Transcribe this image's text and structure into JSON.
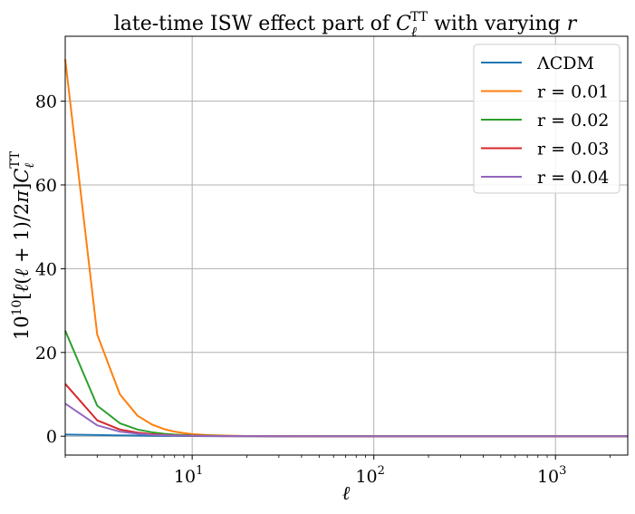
{
  "chart_data": {
    "type": "line",
    "title": "late-time ISW effect part of C_ℓ^TT with varying r",
    "xlabel": "ℓ",
    "ylabel": "10^10[ℓ(ℓ+1)/2π]C_ℓ^TT",
    "xscale": "log",
    "xlim": [
      2,
      2500
    ],
    "ylim": [
      -4.5,
      95.5
    ],
    "grid": true,
    "legend_position": "top-right",
    "x_ticks": [
      {
        "value": 10,
        "base": "10",
        "exp": "1"
      },
      {
        "value": 100,
        "base": "10",
        "exp": "2"
      },
      {
        "value": 1000,
        "base": "10",
        "exp": "3"
      }
    ],
    "y_ticks": [
      0,
      20,
      40,
      60,
      80
    ],
    "x": [
      2,
      3,
      4,
      5,
      6,
      7,
      8,
      9,
      10,
      12,
      15,
      20,
      30,
      50,
      100,
      200,
      500,
      1000,
      2500
    ],
    "series": [
      {
        "name": "ΛCDM",
        "color": "#1f77b4",
        "values": [
          0.4,
          0.3,
          0.2,
          0.15,
          0.1,
          0.08,
          0.06,
          0.05,
          0.04,
          0.03,
          0.02,
          0.01,
          0.0,
          0.0,
          0.0,
          0.0,
          0.0,
          0.0,
          0.0
        ]
      },
      {
        "name": "r = 0.01",
        "color": "#ff7f0e",
        "values": [
          90.0,
          24.3,
          10.0,
          4.9,
          2.8,
          1.7,
          1.1,
          0.75,
          0.5,
          0.3,
          0.15,
          0.05,
          0.02,
          0.0,
          0.0,
          0.0,
          0.0,
          0.0,
          0.0
        ]
      },
      {
        "name": "r = 0.02",
        "color": "#2ca02c",
        "values": [
          25.2,
          7.3,
          3.1,
          1.6,
          0.95,
          0.6,
          0.4,
          0.3,
          0.2,
          0.12,
          0.06,
          0.02,
          0.0,
          0.0,
          0.0,
          0.0,
          0.0,
          0.0,
          0.0
        ]
      },
      {
        "name": "r = 0.03",
        "color": "#d62728",
        "values": [
          12.5,
          3.8,
          1.6,
          0.85,
          0.5,
          0.33,
          0.22,
          0.16,
          0.12,
          0.07,
          0.03,
          0.01,
          0.0,
          0.0,
          0.0,
          0.0,
          0.0,
          0.0,
          0.0
        ]
      },
      {
        "name": "r = 0.04",
        "color": "#9467bd",
        "values": [
          7.8,
          2.6,
          1.1,
          0.6,
          0.35,
          0.23,
          0.16,
          0.12,
          0.09,
          0.05,
          0.02,
          0.01,
          0.0,
          0.0,
          0.0,
          0.0,
          0.0,
          0.0,
          0.0
        ]
      }
    ]
  }
}
